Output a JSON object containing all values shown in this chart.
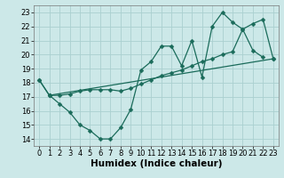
{
  "line1_x": [
    0,
    1,
    2,
    3,
    4,
    5,
    6,
    7,
    8,
    9,
    10,
    11,
    12,
    13,
    14,
    15,
    16,
    17,
    18,
    19,
    20,
    21,
    22
  ],
  "line1_y": [
    18.2,
    17.1,
    16.5,
    15.9,
    15.0,
    14.6,
    14.0,
    14.0,
    14.8,
    16.1,
    18.9,
    19.5,
    20.6,
    20.6,
    19.2,
    21.0,
    18.4,
    22.0,
    23.0,
    22.3,
    21.8,
    20.3,
    19.8
  ],
  "line2_x": [
    0,
    1,
    2,
    3,
    4,
    5,
    6,
    7,
    8,
    9,
    10,
    11,
    12,
    13,
    14,
    15,
    16,
    17,
    18,
    19,
    20,
    21,
    22,
    23
  ],
  "line2_y": [
    18.2,
    17.1,
    17.1,
    17.2,
    17.4,
    17.5,
    17.5,
    17.5,
    17.4,
    17.6,
    17.9,
    18.2,
    18.5,
    18.7,
    18.9,
    19.2,
    19.5,
    19.7,
    20.0,
    20.2,
    21.8,
    22.2,
    22.5,
    19.7
  ],
  "line3_x": [
    1,
    23
  ],
  "line3_y": [
    17.1,
    19.7
  ],
  "bg_color": "#cce8e8",
  "grid_color": "#aad0d0",
  "line_color": "#1a6b5a",
  "xlim": [
    -0.5,
    23.5
  ],
  "ylim": [
    13.5,
    23.5
  ],
  "yticks": [
    14,
    15,
    16,
    17,
    18,
    19,
    20,
    21,
    22,
    23
  ],
  "xticks": [
    0,
    1,
    2,
    3,
    4,
    5,
    6,
    7,
    8,
    9,
    10,
    11,
    12,
    13,
    14,
    15,
    16,
    17,
    18,
    19,
    20,
    21,
    22,
    23
  ],
  "xlabel": "Humidex (Indice chaleur)",
  "xlabel_fontsize": 7.5,
  "tick_fontsize": 6,
  "marker": "D",
  "marker_size": 2.5,
  "linewidth": 0.9
}
